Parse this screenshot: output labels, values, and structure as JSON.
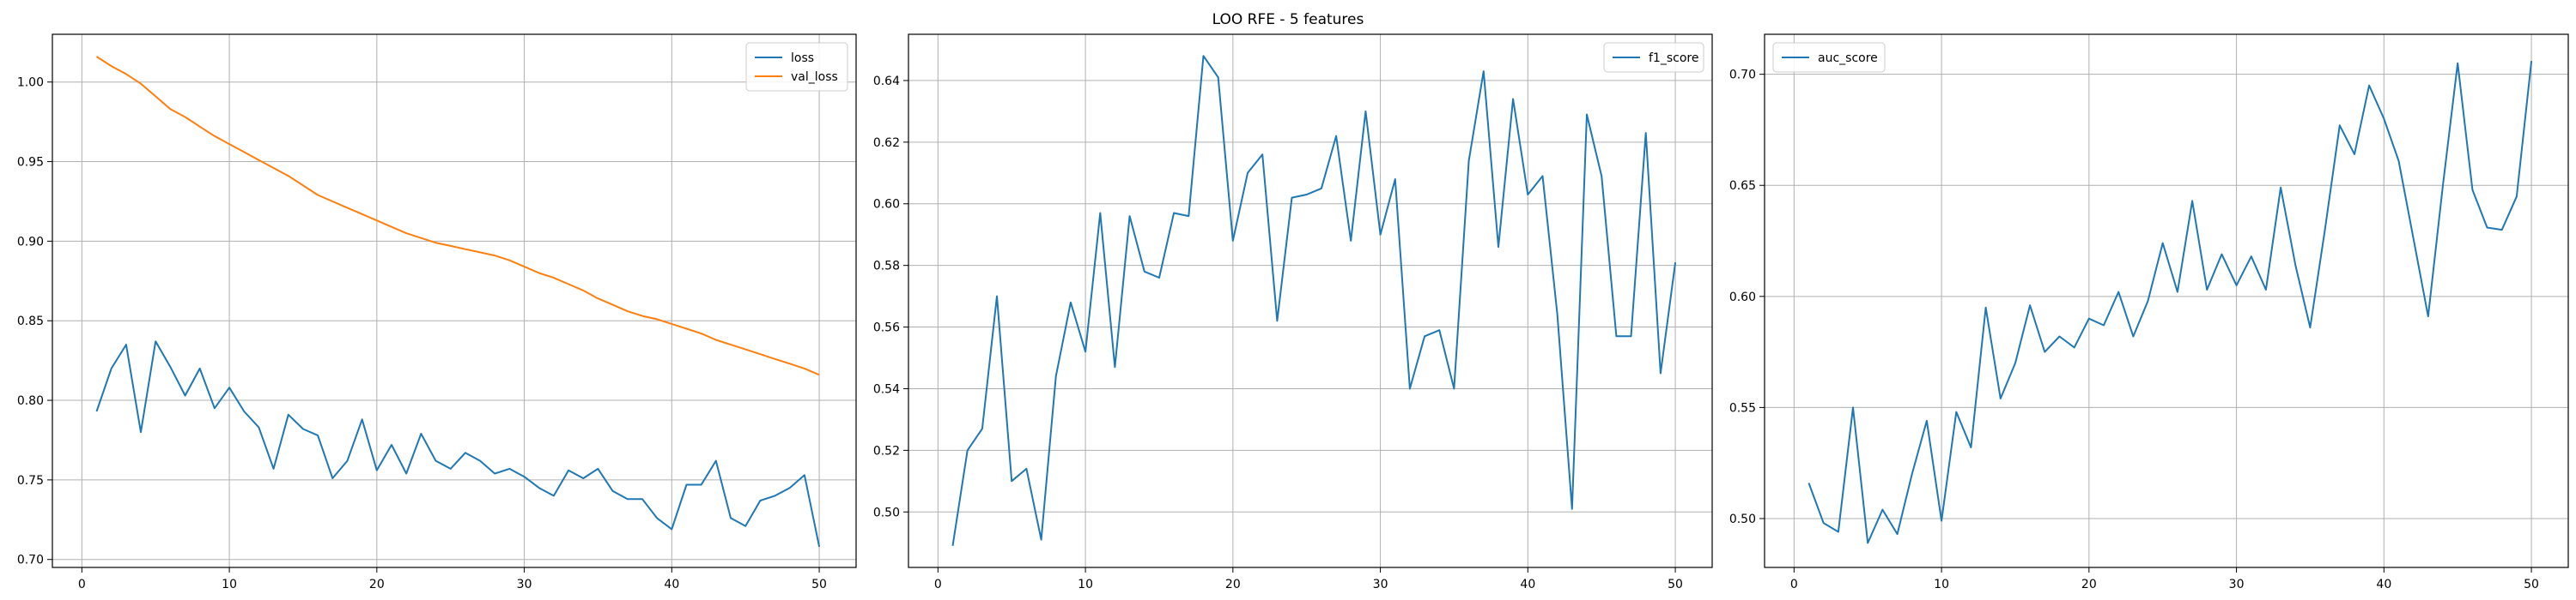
{
  "figure": {
    "title": "LOO RFE - 5 features"
  },
  "colors": {
    "series_blue": "#1f77b4",
    "series_orange": "#ff7f0e",
    "grid": "#b0b0b0"
  },
  "chart_data": [
    {
      "type": "line",
      "grid": true,
      "legend_position": "top-right",
      "xlim": [
        -2,
        52.5
      ],
      "ylim": [
        0.695,
        1.03
      ],
      "xticks": [
        0,
        10,
        20,
        30,
        40,
        50
      ],
      "yticks": [
        0.7,
        0.75,
        0.8,
        0.85,
        0.9,
        0.95,
        1.0
      ],
      "x": [
        1,
        2,
        3,
        4,
        5,
        6,
        7,
        8,
        9,
        10,
        11,
        12,
        13,
        14,
        15,
        16,
        17,
        18,
        19,
        20,
        21,
        22,
        23,
        24,
        25,
        26,
        27,
        28,
        29,
        30,
        31,
        32,
        33,
        34,
        35,
        36,
        37,
        38,
        39,
        40,
        41,
        42,
        43,
        44,
        45,
        46,
        47,
        48,
        49,
        50
      ],
      "series": [
        {
          "name": "loss",
          "color": "#1f77b4",
          "values": [
            0.793,
            0.82,
            0.835,
            0.78,
            0.837,
            0.821,
            0.803,
            0.82,
            0.795,
            0.808,
            0.793,
            0.783,
            0.757,
            0.791,
            0.782,
            0.778,
            0.751,
            0.762,
            0.788,
            0.756,
            0.772,
            0.754,
            0.779,
            0.762,
            0.757,
            0.767,
            0.762,
            0.754,
            0.757,
            0.752,
            0.745,
            0.74,
            0.756,
            0.751,
            0.757,
            0.743,
            0.738,
            0.738,
            0.726,
            0.719,
            0.747,
            0.747,
            0.762,
            0.726,
            0.721,
            0.737,
            0.74,
            0.745,
            0.753,
            0.708
          ]
        },
        {
          "name": "val_loss",
          "color": "#ff7f0e",
          "values": [
            1.016,
            1.01,
            1.005,
            0.999,
            0.991,
            0.983,
            0.978,
            0.972,
            0.966,
            0.961,
            0.956,
            0.951,
            0.946,
            0.941,
            0.935,
            0.929,
            0.925,
            0.921,
            0.917,
            0.913,
            0.909,
            0.905,
            0.902,
            0.899,
            0.897,
            0.895,
            0.893,
            0.891,
            0.888,
            0.884,
            0.88,
            0.877,
            0.873,
            0.869,
            0.864,
            0.86,
            0.856,
            0.853,
            0.851,
            0.848,
            0.845,
            0.842,
            0.838,
            0.835,
            0.832,
            0.829,
            0.826,
            0.823,
            0.82,
            0.816
          ]
        }
      ]
    },
    {
      "type": "line",
      "grid": true,
      "legend_position": "top-right",
      "xlim": [
        -2,
        52.5
      ],
      "ylim": [
        0.482,
        0.655
      ],
      "xticks": [
        0,
        10,
        20,
        30,
        40,
        50
      ],
      "yticks": [
        0.5,
        0.52,
        0.54,
        0.56,
        0.58,
        0.6,
        0.62,
        0.64
      ],
      "x": [
        1,
        2,
        3,
        4,
        5,
        6,
        7,
        8,
        9,
        10,
        11,
        12,
        13,
        14,
        15,
        16,
        17,
        18,
        19,
        20,
        21,
        22,
        23,
        24,
        25,
        26,
        27,
        28,
        29,
        30,
        31,
        32,
        33,
        34,
        35,
        36,
        37,
        38,
        39,
        40,
        41,
        42,
        43,
        44,
        45,
        46,
        47,
        48,
        49,
        50
      ],
      "series": [
        {
          "name": "f1_score",
          "color": "#1f77b4",
          "values": [
            0.489,
            0.52,
            0.527,
            0.57,
            0.51,
            0.514,
            0.491,
            0.544,
            0.568,
            0.552,
            0.597,
            0.547,
            0.596,
            0.578,
            0.576,
            0.597,
            0.596,
            0.648,
            0.641,
            0.588,
            0.61,
            0.616,
            0.562,
            0.602,
            0.603,
            0.605,
            0.622,
            0.588,
            0.63,
            0.59,
            0.608,
            0.54,
            0.557,
            0.559,
            0.54,
            0.614,
            0.643,
            0.586,
            0.634,
            0.603,
            0.609,
            0.564,
            0.501,
            0.629,
            0.609,
            0.557,
            0.557,
            0.623,
            0.545,
            0.581
          ]
        }
      ]
    },
    {
      "type": "line",
      "grid": true,
      "legend_position": "top-left",
      "xlim": [
        -2,
        52.5
      ],
      "ylim": [
        0.478,
        0.718
      ],
      "xticks": [
        0,
        10,
        20,
        30,
        40,
        50
      ],
      "yticks": [
        0.5,
        0.55,
        0.6,
        0.65,
        0.7
      ],
      "x": [
        1,
        2,
        3,
        4,
        5,
        6,
        7,
        8,
        9,
        10,
        11,
        12,
        13,
        14,
        15,
        16,
        17,
        18,
        19,
        20,
        21,
        22,
        23,
        24,
        25,
        26,
        27,
        28,
        29,
        30,
        31,
        32,
        33,
        34,
        35,
        36,
        37,
        38,
        39,
        40,
        41,
        42,
        43,
        44,
        45,
        46,
        47,
        48,
        49,
        50
      ],
      "series": [
        {
          "name": "auc_score",
          "color": "#1f77b4",
          "values": [
            0.516,
            0.498,
            0.494,
            0.55,
            0.489,
            0.504,
            0.493,
            0.52,
            0.544,
            0.499,
            0.548,
            0.532,
            0.595,
            0.554,
            0.57,
            0.596,
            0.575,
            0.582,
            0.577,
            0.59,
            0.587,
            0.602,
            0.582,
            0.598,
            0.624,
            0.602,
            0.643,
            0.603,
            0.619,
            0.605,
            0.618,
            0.603,
            0.649,
            0.614,
            0.586,
            0.63,
            0.677,
            0.664,
            0.695,
            0.68,
            0.661,
            0.626,
            0.591,
            0.65,
            0.705,
            0.648,
            0.631,
            0.63,
            0.645,
            0.706
          ]
        }
      ]
    }
  ]
}
